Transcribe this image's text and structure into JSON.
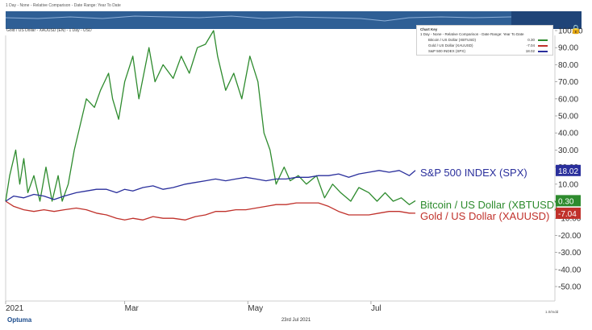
{
  "header": {
    "range_text": "1 Day - None - Relative Comparison - Date Range: Year To Date",
    "subtitle": "Gold / US Dollar - XAUUSD (EN) - 1 Day - USD"
  },
  "legend": {
    "title": "Chart Key",
    "subtitle": "1 Day - None - Relative Comparison - Date Range: Year To Date",
    "items": [
      {
        "name": "Bitcoin / US Dollar (XBTUSD)",
        "value": "0.30",
        "color": "#2e8b2e"
      },
      {
        "name": "Gold / US Dollar (XAUUSD)",
        "value": "-7.04",
        "color": "#c0312b"
      },
      {
        "name": "S&P 500 INDEX (SPX)",
        "value": "18.02",
        "color": "#2a2f9c"
      }
    ]
  },
  "footer": {
    "logo": "Optuma",
    "date": "23rd Jul 2021",
    "scale_label": "1.0/mdd"
  },
  "icons": {
    "lock": "lock-icon"
  },
  "chart_data": {
    "type": "line",
    "title": "",
    "xlabel": "",
    "ylabel": "",
    "ylim": [
      -55,
      100
    ],
    "yticks": [
      -50,
      -40,
      -30,
      -20,
      -10,
      0,
      10,
      20,
      30,
      40,
      50,
      60,
      70,
      80,
      90,
      100
    ],
    "ytick_labels": [
      "-50.00",
      "-40.00",
      "-30.00",
      "-20.00",
      "-10.00",
      "",
      "10.00",
      "20.00",
      "30.00",
      "40.00",
      "50.00",
      "60.00",
      "70.00",
      "80.00",
      "90.00",
      "100.00"
    ],
    "x_range": [
      "2021-01-01",
      "2021-07-23"
    ],
    "xticks": [
      {
        "date": "2021-01-01",
        "label": "2021"
      },
      {
        "date": "2021-03-01",
        "label": "Mar"
      },
      {
        "date": "2021-05-01",
        "label": "May"
      },
      {
        "date": "2021-07-01",
        "label": "Jul"
      }
    ],
    "grid": false,
    "series": [
      {
        "name": "Bitcoin / US Dollar (XBTUSD)",
        "end_label": "Bitcoin / US Dollar (XBTUSD)",
        "last_value": "0.30",
        "color": "#2e8b2e",
        "x": [
          "2021-01-01",
          "2021-01-03",
          "2021-01-06",
          "2021-01-08",
          "2021-01-10",
          "2021-01-12",
          "2021-01-15",
          "2021-01-18",
          "2021-01-21",
          "2021-01-24",
          "2021-01-27",
          "2021-01-29",
          "2021-02-01",
          "2021-02-04",
          "2021-02-08",
          "2021-02-10",
          "2021-02-14",
          "2021-02-17",
          "2021-02-21",
          "2021-02-23",
          "2021-02-26",
          "2021-03-01",
          "2021-03-05",
          "2021-03-08",
          "2021-03-13",
          "2021-03-16",
          "2021-03-20",
          "2021-03-25",
          "2021-03-29",
          "2021-04-02",
          "2021-04-06",
          "2021-04-10",
          "2021-04-14",
          "2021-04-16",
          "2021-04-20",
          "2021-04-24",
          "2021-04-28",
          "2021-05-02",
          "2021-05-06",
          "2021-05-09",
          "2021-05-12",
          "2021-05-15",
          "2021-05-19",
          "2021-05-22",
          "2021-05-26",
          "2021-05-30",
          "2021-06-04",
          "2021-06-08",
          "2021-06-12",
          "2021-06-16",
          "2021-06-21",
          "2021-06-25",
          "2021-06-30",
          "2021-07-04",
          "2021-07-08",
          "2021-07-12",
          "2021-07-16",
          "2021-07-20",
          "2021-07-23"
        ],
        "y": [
          0,
          15,
          30,
          10,
          25,
          5,
          15,
          0,
          20,
          0,
          15,
          0,
          10,
          30,
          50,
          60,
          55,
          65,
          75,
          60,
          48,
          70,
          85,
          60,
          90,
          70,
          80,
          72,
          85,
          75,
          90,
          92,
          100,
          85,
          65,
          75,
          60,
          85,
          70,
          40,
          30,
          10,
          20,
          12,
          15,
          10,
          15,
          2,
          10,
          5,
          0,
          8,
          5,
          0,
          5,
          0,
          2,
          -2,
          0.3
        ]
      },
      {
        "name": "Gold / US Dollar (XAUUSD)",
        "end_label": "Gold / US Dollar (XAUUSD)",
        "last_value": "-7.04",
        "color": "#c0312b",
        "x": [
          "2021-01-01",
          "2021-01-05",
          "2021-01-10",
          "2021-01-15",
          "2021-01-20",
          "2021-01-25",
          "2021-01-30",
          "2021-02-05",
          "2021-02-10",
          "2021-02-15",
          "2021-02-20",
          "2021-02-25",
          "2021-03-01",
          "2021-03-05",
          "2021-03-10",
          "2021-03-15",
          "2021-03-20",
          "2021-03-25",
          "2021-03-31",
          "2021-04-05",
          "2021-04-10",
          "2021-04-15",
          "2021-04-20",
          "2021-04-25",
          "2021-04-30",
          "2021-05-05",
          "2021-05-10",
          "2021-05-15",
          "2021-05-20",
          "2021-05-25",
          "2021-05-31",
          "2021-06-05",
          "2021-06-10",
          "2021-06-15",
          "2021-06-20",
          "2021-06-25",
          "2021-06-30",
          "2021-07-05",
          "2021-07-10",
          "2021-07-15",
          "2021-07-20",
          "2021-07-23"
        ],
        "y": [
          0,
          -3,
          -5,
          -6,
          -5,
          -6,
          -5,
          -4,
          -5,
          -7,
          -8,
          -10,
          -11,
          -10,
          -11,
          -9,
          -10,
          -10,
          -11,
          -9,
          -8,
          -6,
          -6,
          -5,
          -5,
          -4,
          -3,
          -2,
          -2,
          -1,
          -1,
          -1,
          -3,
          -6,
          -8,
          -8,
          -8,
          -7,
          -6,
          -6,
          -7,
          -7.04
        ]
      },
      {
        "name": "S&P 500 INDEX (SPX)",
        "end_label": "S&P 500 INDEX (SPX)",
        "last_value": "18.02",
        "color": "#2a2f9c",
        "x": [
          "2021-01-01",
          "2021-01-05",
          "2021-01-10",
          "2021-01-15",
          "2021-01-20",
          "2021-01-25",
          "2021-01-30",
          "2021-02-05",
          "2021-02-10",
          "2021-02-15",
          "2021-02-20",
          "2021-02-25",
          "2021-03-01",
          "2021-03-05",
          "2021-03-10",
          "2021-03-15",
          "2021-03-20",
          "2021-03-25",
          "2021-03-31",
          "2021-04-05",
          "2021-04-10",
          "2021-04-15",
          "2021-04-20",
          "2021-04-25",
          "2021-04-30",
          "2021-05-05",
          "2021-05-10",
          "2021-05-15",
          "2021-05-20",
          "2021-05-25",
          "2021-05-31",
          "2021-06-05",
          "2021-06-10",
          "2021-06-15",
          "2021-06-20",
          "2021-06-25",
          "2021-06-30",
          "2021-07-05",
          "2021-07-10",
          "2021-07-15",
          "2021-07-20",
          "2021-07-23"
        ],
        "y": [
          0,
          3,
          2,
          4,
          3,
          1,
          3,
          5,
          6,
          7,
          7,
          5,
          7,
          6,
          8,
          9,
          7,
          8,
          10,
          11,
          12,
          13,
          12,
          13,
          14,
          13,
          12,
          13,
          13,
          14,
          14,
          15,
          15,
          16,
          14,
          16,
          17,
          18,
          17,
          18,
          15,
          18.02
        ]
      }
    ]
  }
}
